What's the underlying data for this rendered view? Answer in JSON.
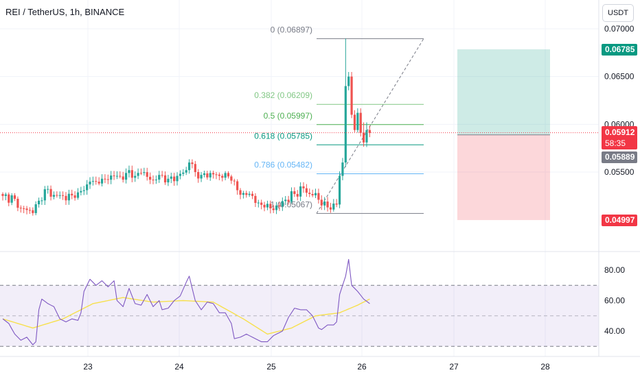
{
  "header": {
    "symbol_title": "REI / TetherUS, 1h, BINANCE",
    "currency_button": "USDT"
  },
  "price_axis": {
    "ticks": [
      "0.07000",
      "0.06500",
      "0.06000",
      "0.05500"
    ],
    "badges": {
      "target": "0.06785",
      "current_price": "0.05912",
      "countdown": "58:35",
      "entry": "0.05889",
      "stop": "0.04997"
    }
  },
  "rsi_axis": {
    "ticks": [
      "80.00",
      "60.00",
      "40.00"
    ]
  },
  "time_axis": {
    "ticks": [
      "23",
      "24",
      "25",
      "26",
      "27",
      "28"
    ]
  },
  "fib_levels": [
    {
      "label": "0 (0.06897)",
      "price": 0.06897,
      "color": "#787b86"
    },
    {
      "label": "0.382 (0.06209)",
      "price": 0.06209,
      "color": "#81c784"
    },
    {
      "label": "0.5 (0.05997)",
      "price": 0.05997,
      "color": "#4caf50"
    },
    {
      "label": "0.618 (0.05785)",
      "price": 0.05785,
      "color": "#089981"
    },
    {
      "label": "0.786 (0.05482)",
      "price": 0.05482,
      "color": "#64b5f6"
    },
    {
      "label": "1 (0.05067)",
      "price": 0.05067,
      "color": "#787b86"
    }
  ],
  "colors": {
    "up": "#26a69a",
    "down": "#ef5350",
    "rsi_line": "#7e57c2",
    "rsi_ma": "#f7e04b",
    "target_badge": "#089981",
    "price_badge": "#f23645",
    "entry_badge": "#787b86",
    "stop_badge": "#f23645"
  },
  "chart_data": [
    {
      "type": "candlestick",
      "title": "REI / TetherUS, 1h, BINANCE",
      "ylim": [
        0.0488,
        0.0712
      ],
      "x_ticks": [
        "23",
        "24",
        "25",
        "26",
        "27",
        "28"
      ],
      "y_ticks": [
        0.055,
        0.06,
        0.065,
        0.07
      ],
      "close_anchors": [
        [
          0,
          0.0525
        ],
        [
          4,
          0.0522
        ],
        [
          6,
          0.0512
        ],
        [
          9,
          0.051
        ],
        [
          10,
          0.0507
        ],
        [
          12,
          0.052
        ],
        [
          14,
          0.0532
        ],
        [
          17,
          0.0526
        ],
        [
          20,
          0.0525
        ],
        [
          24,
          0.0523
        ],
        [
          27,
          0.0531
        ],
        [
          29,
          0.054
        ],
        [
          32,
          0.0538
        ],
        [
          35,
          0.0542
        ],
        [
          38,
          0.0546
        ],
        [
          40,
          0.0542
        ],
        [
          42,
          0.0552
        ],
        [
          44,
          0.0546
        ],
        [
          46,
          0.0549
        ],
        [
          48,
          0.0545
        ],
        [
          50,
          0.0542
        ],
        [
          52,
          0.0547
        ],
        [
          55,
          0.0543
        ],
        [
          58,
          0.0546
        ],
        [
          61,
          0.0552
        ],
        [
          62,
          0.056
        ],
        [
          64,
          0.055
        ],
        [
          66,
          0.0547
        ],
        [
          69,
          0.0549
        ],
        [
          72,
          0.0546
        ],
        [
          74,
          0.0549
        ],
        [
          76,
          0.0541
        ],
        [
          78,
          0.0531
        ],
        [
          80,
          0.0528
        ],
        [
          83,
          0.0525
        ],
        [
          85,
          0.0518
        ],
        [
          87,
          0.0513
        ],
        [
          89,
          0.0512
        ],
        [
          92,
          0.0514
        ],
        [
          94,
          0.0521
        ],
        [
          97,
          0.0527
        ],
        [
          100,
          0.0533
        ],
        [
          102,
          0.0527
        ],
        [
          104,
          0.0528
        ],
        [
          105,
          0.0521
        ],
        [
          106,
          0.0515
        ],
        [
          108,
          0.0513
        ],
        [
          110,
          0.0517
        ],
        [
          111,
          0.0516
        ],
        [
          112,
          0.0546
        ],
        [
          113,
          0.056
        ],
        [
          114,
          0.064
        ],
        [
          115,
          0.065
        ],
        [
          116,
          0.061
        ],
        [
          117,
          0.0594
        ],
        [
          118,
          0.0612
        ],
        [
          119,
          0.0591
        ],
        [
          120,
          0.0581
        ],
        [
          121,
          0.0594
        ],
        [
          122,
          0.0591
        ]
      ],
      "swing_high": 0.06897,
      "swing_low": 0.05067,
      "position": {
        "target": 0.06785,
        "entry": 0.05889,
        "stop": 0.04997,
        "current": 0.05912
      }
    },
    {
      "type": "line",
      "name": "RSI",
      "ylim": [
        27,
        89
      ],
      "y_ticks": [
        40,
        60,
        80
      ],
      "bands": [
        30,
        50,
        70
      ],
      "rsi_anchors": [
        [
          0,
          48
        ],
        [
          2,
          45
        ],
        [
          4,
          38
        ],
        [
          6,
          34
        ],
        [
          8,
          36
        ],
        [
          10,
          31
        ],
        [
          11,
          33
        ],
        [
          12,
          54
        ],
        [
          13,
          61
        ],
        [
          15,
          58
        ],
        [
          17,
          56
        ],
        [
          19,
          48
        ],
        [
          21,
          46
        ],
        [
          23,
          48
        ],
        [
          25,
          47
        ],
        [
          26,
          52
        ],
        [
          27,
          66
        ],
        [
          29,
          74
        ],
        [
          31,
          70
        ],
        [
          33,
          73
        ],
        [
          35,
          69
        ],
        [
          37,
          73
        ],
        [
          38,
          60
        ],
        [
          40,
          56
        ],
        [
          42,
          68
        ],
        [
          44,
          58
        ],
        [
          46,
          57
        ],
        [
          48,
          64
        ],
        [
          50,
          56
        ],
        [
          52,
          60
        ],
        [
          53,
          54
        ],
        [
          55,
          55
        ],
        [
          57,
          60
        ],
        [
          59,
          63
        ],
        [
          61,
          72
        ],
        [
          62,
          76
        ],
        [
          64,
          60
        ],
        [
          66,
          54
        ],
        [
          68,
          59
        ],
        [
          70,
          58
        ],
        [
          72,
          52
        ],
        [
          74,
          52
        ],
        [
          76,
          45
        ],
        [
          77,
          35
        ],
        [
          79,
          36
        ],
        [
          81,
          38
        ],
        [
          84,
          35
        ],
        [
          86,
          33
        ],
        [
          88,
          33
        ],
        [
          90,
          37
        ],
        [
          93,
          40
        ],
        [
          95,
          49
        ],
        [
          97,
          55
        ],
        [
          99,
          54
        ],
        [
          101,
          54
        ],
        [
          103,
          50
        ],
        [
          105,
          42
        ],
        [
          106,
          41
        ],
        [
          108,
          44
        ],
        [
          110,
          44
        ],
        [
          111,
          46
        ],
        [
          112,
          64
        ],
        [
          113,
          70
        ],
        [
          114,
          76
        ],
        [
          115,
          87
        ],
        [
          116,
          70
        ],
        [
          118,
          66
        ],
        [
          120,
          61
        ],
        [
          122,
          58
        ]
      ],
      "ma_anchors": [
        [
          0,
          48
        ],
        [
          10,
          42
        ],
        [
          20,
          48
        ],
        [
          30,
          58
        ],
        [
          40,
          62
        ],
        [
          50,
          59
        ],
        [
          60,
          60
        ],
        [
          70,
          59
        ],
        [
          80,
          48
        ],
        [
          88,
          38
        ],
        [
          96,
          42
        ],
        [
          104,
          50
        ],
        [
          112,
          52
        ],
        [
          118,
          57
        ],
        [
          122,
          61
        ]
      ]
    }
  ]
}
